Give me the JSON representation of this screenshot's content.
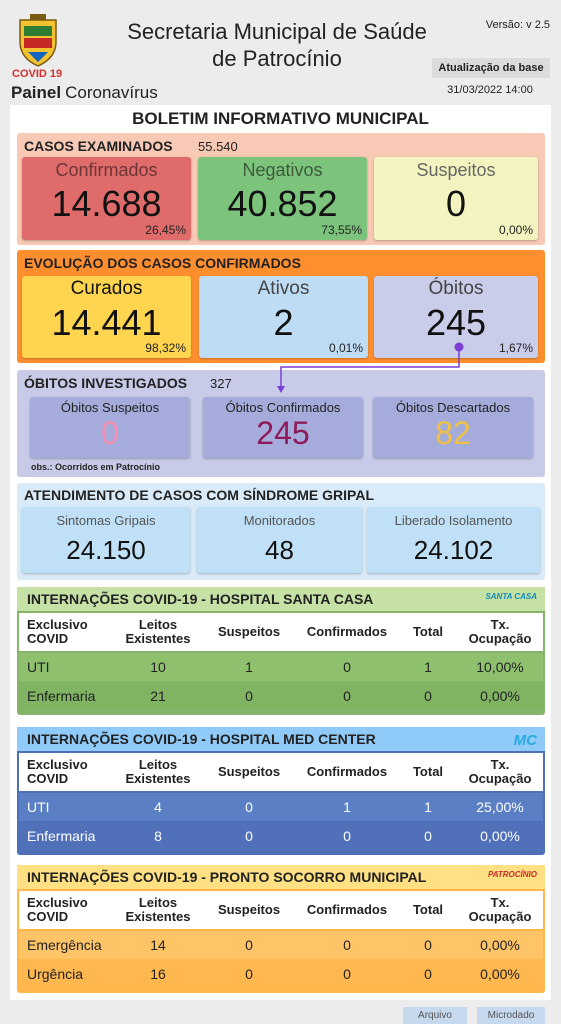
{
  "header": {
    "covid_label": "COVID 19",
    "panel_bold": "Painel",
    "panel_rest": "Coronavírus",
    "title_line1": "Secretaria Municipal de Saúde",
    "title_line2": "de Patrocínio",
    "version": "Versão: v 2.5",
    "update_button": "Atualização da base",
    "datetime": "31/03/2022 14:00"
  },
  "bulletin_title": "BOLETIM INFORMATIVO MUNICIPAL",
  "cases_examined": {
    "title": "CASOS EXAMINADOS",
    "total": "55.540",
    "boxes": [
      {
        "label": "Confirmados",
        "value": "14.688",
        "percent": "26,45%"
      },
      {
        "label": "Negativos",
        "value": "40.852",
        "percent": "73,55%"
      },
      {
        "label": "Suspeitos",
        "value": "0",
        "percent": "0,00%"
      }
    ]
  },
  "evolution": {
    "title": "EVOLUÇÃO DOS CASOS CONFIRMADOS",
    "boxes": [
      {
        "label": "Curados",
        "value": "14.441",
        "percent": "98,32%"
      },
      {
        "label": "Ativos",
        "value": "2",
        "percent": "0,01%"
      },
      {
        "label": "Óbitos",
        "value": "245",
        "percent": "1,67%"
      }
    ]
  },
  "deaths_investigated": {
    "title": "ÓBITOS INVESTIGADOS",
    "total": "327",
    "boxes": [
      {
        "label": "Óbitos Suspeitos",
        "value": "0"
      },
      {
        "label": "Óbitos Confirmados",
        "value": "245"
      },
      {
        "label": "Óbitos Descartados",
        "value": "82"
      }
    ],
    "note": "obs.: Ocorridos em Patrocínio"
  },
  "flu": {
    "title": "ATENDIMENTO DE CASOS COM SÍNDROME GRIPAL",
    "boxes": [
      {
        "label": "Sintomas Gripais",
        "value": "24.150"
      },
      {
        "label": "Monitorados",
        "value": "48"
      },
      {
        "label": "Liberado Isolamento",
        "value": "24.102"
      }
    ]
  },
  "hospitals": [
    {
      "title": "INTERNAÇÕES COVID-19 - HOSPITAL SANTA CASA",
      "logo_text": "SANTA CASA",
      "columns": [
        [
          "Exclusivo",
          "COVID"
        ],
        [
          "Leitos",
          "Existentes"
        ],
        [
          "Suspeitos"
        ],
        [
          "Confirmados"
        ],
        [
          "Total"
        ],
        [
          "Tx.",
          "Ocupação"
        ]
      ],
      "rows": [
        [
          "UTI",
          "10",
          "1",
          "0",
          "1",
          "10,00%"
        ],
        [
          "Enfermaria",
          "21",
          "0",
          "0",
          "0",
          "0,00%"
        ]
      ]
    },
    {
      "title": "INTERNAÇÕES COVID-19 - HOSPITAL MED CENTER",
      "logo_text": "MC",
      "columns": [
        [
          "Exclusivo",
          "COVID"
        ],
        [
          "Leitos",
          "Existentes"
        ],
        [
          "Suspeitos"
        ],
        [
          "Confirmados"
        ],
        [
          "Total"
        ],
        [
          "Tx.",
          "Ocupação"
        ]
      ],
      "rows": [
        [
          "UTI",
          "4",
          "0",
          "1",
          "1",
          "25,00%"
        ],
        [
          "Enfermaria",
          "8",
          "0",
          "0",
          "0",
          "0,00%"
        ]
      ]
    },
    {
      "title": "INTERNAÇÕES COVID-19 - PRONTO SOCORRO MUNICIPAL",
      "logo_text": "PATROCÍNIO",
      "columns": [
        [
          "Exclusivo",
          "COVID"
        ],
        [
          "Leitos",
          "Existentes"
        ],
        [
          "Suspeitos"
        ],
        [
          "Confirmados"
        ],
        [
          "Total"
        ],
        [
          "Tx.",
          "Ocupação"
        ]
      ],
      "rows": [
        [
          "Emergência",
          "14",
          "0",
          "0",
          "0",
          "0,00%"
        ],
        [
          "Urgência",
          "16",
          "0",
          "0",
          "0",
          "0,00%"
        ]
      ]
    }
  ],
  "footer_buttons": [
    "Arquivo",
    "Microdado"
  ]
}
